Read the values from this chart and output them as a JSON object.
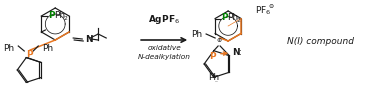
{
  "figsize": [
    3.78,
    0.86
  ],
  "dpi": 100,
  "background": "#ffffff",
  "orange_color": "#E87722",
  "green_color": "#008000",
  "dark_color": "#1a1a1a",
  "blue_color": "#0000AA",
  "arrow_color": "#1a1a1a",
  "reagent": "AgPF$_6$",
  "text1": "oxidative",
  "text2": "N-dealkylation",
  "ni_label": "N(I) compound",
  "fs": 6.5
}
